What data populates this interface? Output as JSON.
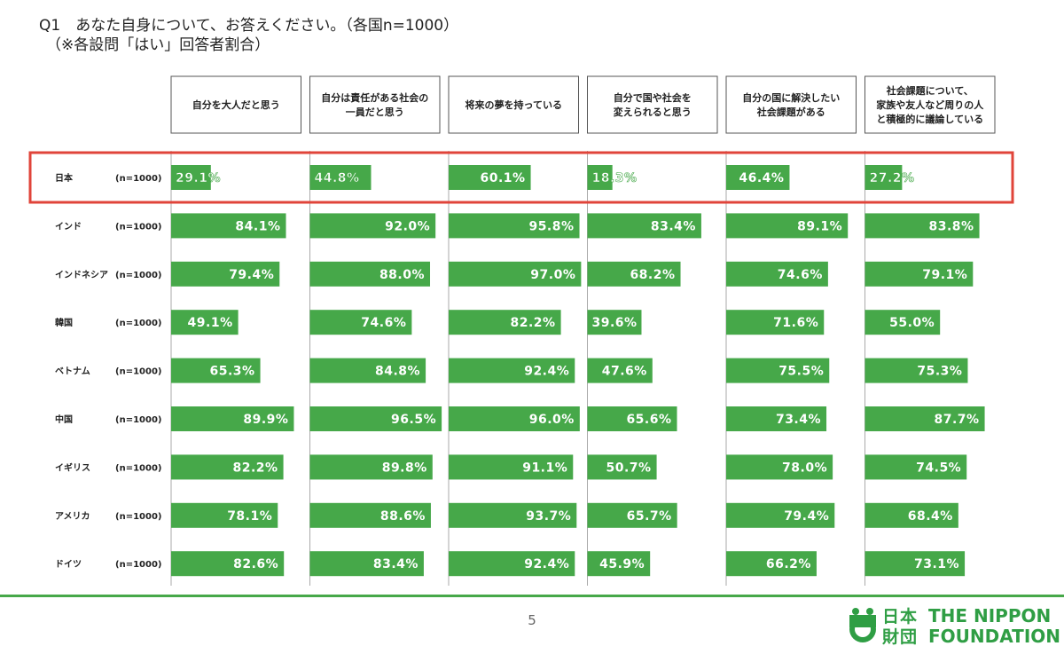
{
  "title": "Q1　あなた自身について、お答えください。（各国n=1000）",
  "subtitle": "（※各設問「はい」回答者割合）",
  "page_number": "5",
  "logo": {
    "jp_line1": "日本",
    "jp_line2": "財団",
    "en_line1": "THE NIPPON",
    "en_line2": "FOUNDATION"
  },
  "colors": {
    "bar": "#46a849",
    "highlight": "#e0443a",
    "gridline": "#aaaaaa",
    "footer": "#46a849"
  },
  "chart_data": {
    "type": "bar",
    "title": "Q1　あなた自身について、お答えください。（各国n=1000）",
    "subtitle": "（※各設問「はい」回答者割合）",
    "unit": "%",
    "xlim": [
      0,
      100
    ],
    "highlighted_row": "日本",
    "columns": [
      [
        "自分を大人だと思う"
      ],
      [
        "自分は責任がある社会の",
        "一員だと思う"
      ],
      [
        "将来の夢を持っている"
      ],
      [
        "自分で国や社会を",
        "変えられると思う"
      ],
      [
        "自分の国に解決したい",
        "社会課題がある"
      ],
      [
        "社会課題について、",
        "家族や友人など周りの人",
        "と積極的に議論している"
      ]
    ],
    "rows": [
      {
        "country": "日本",
        "n": "(n=1000)",
        "values": [
          29.1,
          44.8,
          60.1,
          18.3,
          46.4,
          27.2
        ]
      },
      {
        "country": "インド",
        "n": "(n=1000)",
        "values": [
          84.1,
          92.0,
          95.8,
          83.4,
          89.1,
          83.8
        ]
      },
      {
        "country": "インドネシア",
        "n": "(n=1000)",
        "values": [
          79.4,
          88.0,
          97.0,
          68.2,
          74.6,
          79.1
        ]
      },
      {
        "country": "韓国",
        "n": "(n=1000)",
        "values": [
          49.1,
          74.6,
          82.2,
          39.6,
          71.6,
          55.0
        ]
      },
      {
        "country": "ベトナム",
        "n": "(n=1000)",
        "values": [
          65.3,
          84.8,
          92.4,
          47.6,
          75.5,
          75.3
        ]
      },
      {
        "country": "中国",
        "n": "(n=1000)",
        "values": [
          89.9,
          96.5,
          96.0,
          65.6,
          73.4,
          87.7
        ]
      },
      {
        "country": "イギリス",
        "n": "(n=1000)",
        "values": [
          82.2,
          89.8,
          91.1,
          50.7,
          78.0,
          74.5
        ]
      },
      {
        "country": "アメリカ",
        "n": "(n=1000)",
        "values": [
          78.1,
          88.6,
          93.7,
          65.7,
          79.4,
          68.4
        ]
      },
      {
        "country": "ドイツ",
        "n": "(n=1000)",
        "values": [
          82.6,
          83.4,
          92.4,
          45.9,
          66.2,
          73.1
        ]
      }
    ]
  }
}
